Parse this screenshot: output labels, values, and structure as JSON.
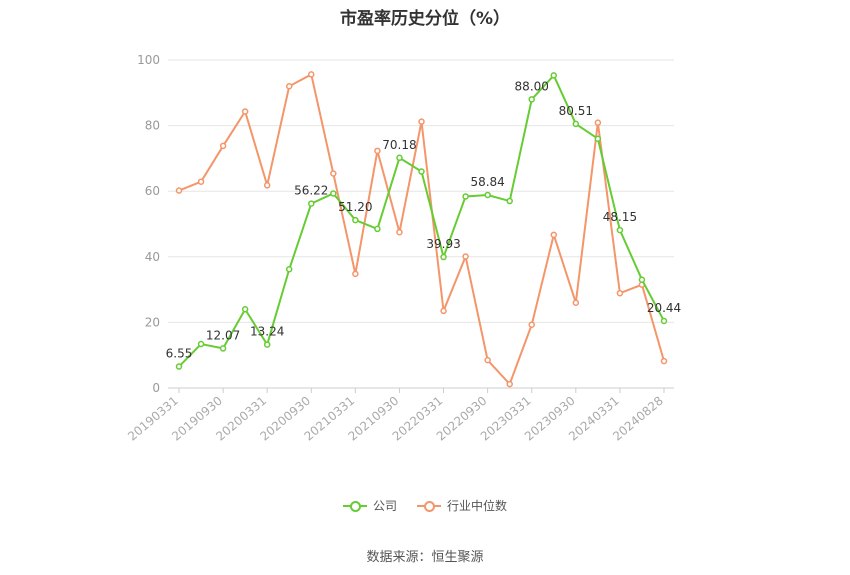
{
  "title": "市盈率历史分位（%）",
  "source": "数据来源：恒生聚源",
  "chart_data": {
    "type": "line",
    "ylim": [
      0,
      100
    ],
    "yticks": [
      0,
      20,
      40,
      60,
      80,
      100
    ],
    "x": [
      "20190331",
      "20190630",
      "20190930",
      "20191231",
      "20200331",
      "20200630",
      "20200930",
      "20201231",
      "20210331",
      "20210630",
      "20210930",
      "20211231",
      "20220331",
      "20220630",
      "20220930",
      "20221231",
      "20230331",
      "20230630",
      "20230930",
      "20231231",
      "20240331",
      "20240630",
      "20240828"
    ],
    "x_tick_labels": [
      "20190331",
      "20190930",
      "20200331",
      "20200930",
      "20210331",
      "20210930",
      "20220331",
      "20220930",
      "20230331",
      "20230930",
      "20240331",
      "20240828"
    ],
    "grid": true,
    "legend_position": "bottom",
    "series": [
      {
        "name": "公司",
        "color": "#66cc33",
        "values": [
          6.55,
          13.4,
          12.07,
          24.0,
          13.24,
          36.2,
          56.22,
          59.3,
          51.2,
          48.5,
          70.18,
          66.0,
          39.93,
          58.4,
          58.84,
          57.0,
          88.0,
          95.3,
          80.51,
          76.0,
          48.15,
          33.0,
          20.44
        ],
        "labels": {
          "0": "6.55",
          "2": "12.07",
          "4": "13.24",
          "6": "56.22",
          "8": "51.20",
          "10": "70.18",
          "12": "39.93",
          "14": "58.84",
          "16": "88.00",
          "18": "80.51",
          "20": "48.15",
          "22": "20.44"
        }
      },
      {
        "name": "行业中位数",
        "color": "#f4956a",
        "values": [
          60.2,
          62.9,
          73.8,
          84.3,
          61.8,
          92.0,
          95.6,
          65.4,
          34.8,
          72.3,
          47.5,
          81.2,
          23.5,
          40.1,
          8.5,
          1.2,
          19.3,
          46.7,
          26.0,
          80.9,
          28.9,
          31.5,
          8.2
        ]
      }
    ]
  }
}
